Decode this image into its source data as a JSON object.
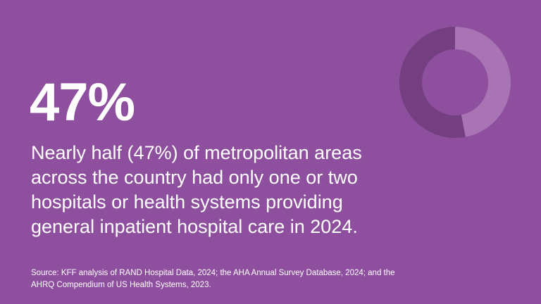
{
  "headline": "47%",
  "statement_lines": [
    "Nearly half (47%) of metropolitan areas",
    "across the country had only one or two",
    "hospitals or health systems providing",
    "general inpatient hospital care in 2024."
  ],
  "source_lines": [
    "Source: KFF analysis of RAND Hospital Data, 2024; the AHA Annual Survey Database, 2024; and the",
    "AHRQ Compendium of US Health Systems, 2023."
  ],
  "colors": {
    "background": "#8e4f9e",
    "highlight": "#a874b4",
    "remainder": "#743f80"
  },
  "chart_data": {
    "type": "pie",
    "style": "donut",
    "values": [
      47,
      53
    ],
    "colors": [
      "#a874b4",
      "#743f80"
    ],
    "start": "top, clockwise"
  }
}
